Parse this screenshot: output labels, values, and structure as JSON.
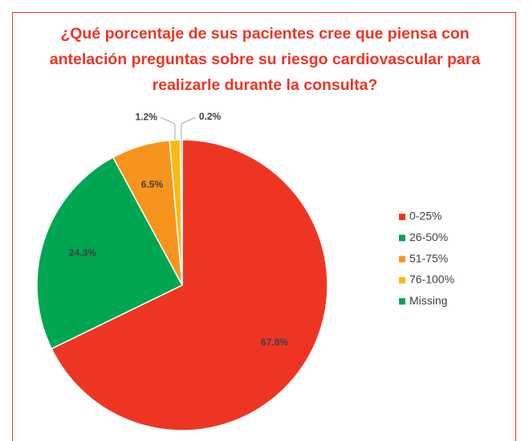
{
  "chart_data": {
    "type": "pie",
    "title": "¿Qué porcentaje de sus pacientes cree que piensa con antelación preguntas sobre su riesgo cardiovascular para realizarle durante la consulta?",
    "categories": [
      "0-25%",
      "26-50%",
      "51-75%",
      "76-100%",
      "Missing"
    ],
    "values": [
      67.8,
      24.3,
      6.5,
      1.2,
      0.2
    ],
    "value_labels": [
      "67.8%",
      "24.3%",
      "6.5%",
      "1.2%",
      "0.2%"
    ],
    "colors": [
      "#ee3524",
      "#00a651",
      "#f7941d",
      "#fdb913",
      "#00a651"
    ],
    "legend": "right"
  }
}
